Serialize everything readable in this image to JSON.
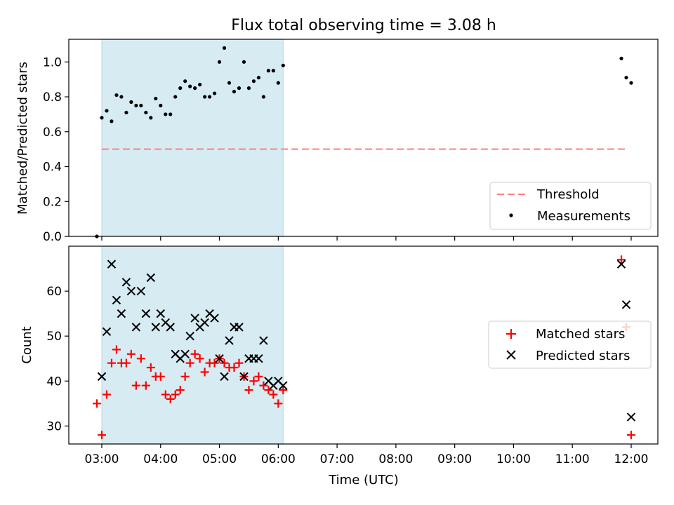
{
  "figure": {
    "title": "Flux total observing time = 3.08 h"
  },
  "chart_data": [
    {
      "type": "scatter",
      "panel": "top",
      "ylabel": "Matched/Predicted stars",
      "xlabel": "",
      "ylim": [
        0.0,
        1.13
      ],
      "yticks": [
        0.0,
        0.2,
        0.4,
        0.6,
        0.8,
        1.0
      ],
      "ytick_labels": [
        "0.0",
        "0.2",
        "0.4",
        "0.6",
        "0.8",
        "1.0"
      ],
      "shaded_interval": [
        "03:00",
        "06:05"
      ],
      "series": [
        {
          "name": "Threshold",
          "kind": "dashed-line",
          "color": "#ff7f7f",
          "points": [
            [
              "03:00",
              0.5
            ],
            [
              "11:56",
              0.5
            ]
          ]
        },
        {
          "name": "Measurements",
          "kind": "dot",
          "color": "#000000",
          "points": [
            [
              "02:55",
              0.0
            ],
            [
              "03:00",
              0.68
            ],
            [
              "03:05",
              0.72
            ],
            [
              "03:10",
              0.66
            ],
            [
              "03:15",
              0.81
            ],
            [
              "03:20",
              0.8
            ],
            [
              "03:25",
              0.71
            ],
            [
              "03:30",
              0.77
            ],
            [
              "03:35",
              0.75
            ],
            [
              "03:40",
              0.75
            ],
            [
              "03:45",
              0.71
            ],
            [
              "03:50",
              0.68
            ],
            [
              "03:55",
              0.79
            ],
            [
              "04:00",
              0.75
            ],
            [
              "04:05",
              0.7
            ],
            [
              "04:10",
              0.7
            ],
            [
              "04:15",
              0.8
            ],
            [
              "04:20",
              0.85
            ],
            [
              "04:25",
              0.89
            ],
            [
              "04:30",
              0.86
            ],
            [
              "04:35",
              0.85
            ],
            [
              "04:40",
              0.87
            ],
            [
              "04:45",
              0.8
            ],
            [
              "04:50",
              0.8
            ],
            [
              "04:55",
              0.82
            ],
            [
              "05:00",
              1.0
            ],
            [
              "05:05",
              1.08
            ],
            [
              "05:10",
              0.88
            ],
            [
              "05:15",
              0.83
            ],
            [
              "05:20",
              0.85
            ],
            [
              "05:25",
              1.0
            ],
            [
              "05:30",
              0.85
            ],
            [
              "05:35",
              0.89
            ],
            [
              "05:40",
              0.91
            ],
            [
              "05:45",
              0.8
            ],
            [
              "05:50",
              0.95
            ],
            [
              "05:55",
              0.95
            ],
            [
              "06:00",
              0.88
            ],
            [
              "06:05",
              0.98
            ],
            [
              "11:50",
              1.02
            ],
            [
              "11:55",
              0.91
            ],
            [
              "12:00",
              0.88
            ]
          ]
        }
      ],
      "legend": {
        "position": "lower-right",
        "entries": [
          "Threshold",
          "Measurements"
        ]
      }
    },
    {
      "type": "scatter",
      "panel": "bottom",
      "ylabel": "Count",
      "xlabel": "Time (UTC)",
      "ylim": [
        26,
        70
      ],
      "yticks": [
        30,
        40,
        50,
        60
      ],
      "ytick_labels": [
        "30",
        "40",
        "50",
        "60"
      ],
      "xlim": [
        "02:27",
        "12:27"
      ],
      "xticks": [
        "03:00",
        "04:00",
        "05:00",
        "06:00",
        "07:00",
        "08:00",
        "09:00",
        "10:00",
        "11:00",
        "12:00"
      ],
      "xtick_labels": [
        "03:00",
        "04:00",
        "05:00",
        "06:00",
        "07:00",
        "08:00",
        "09:00",
        "10:00",
        "11:00",
        "12:00"
      ],
      "shaded_interval": [
        "03:00",
        "06:05"
      ],
      "series": [
        {
          "name": "Matched stars",
          "kind": "plus",
          "color": "#ff0000",
          "points": [
            [
              "02:55",
              35
            ],
            [
              "03:00",
              28
            ],
            [
              "03:05",
              37
            ],
            [
              "03:10",
              44
            ],
            [
              "03:15",
              47
            ],
            [
              "03:20",
              44
            ],
            [
              "03:25",
              44
            ],
            [
              "03:30",
              46
            ],
            [
              "03:35",
              39
            ],
            [
              "03:40",
              45
            ],
            [
              "03:45",
              39
            ],
            [
              "03:50",
              43
            ],
            [
              "03:55",
              41
            ],
            [
              "04:00",
              41
            ],
            [
              "04:05",
              37
            ],
            [
              "04:10",
              36
            ],
            [
              "04:15",
              37
            ],
            [
              "04:20",
              38
            ],
            [
              "04:25",
              41
            ],
            [
              "04:30",
              44
            ],
            [
              "04:35",
              46
            ],
            [
              "04:40",
              45
            ],
            [
              "04:45",
              42
            ],
            [
              "04:50",
              44
            ],
            [
              "04:55",
              44
            ],
            [
              "05:00",
              45
            ],
            [
              "05:05",
              44
            ],
            [
              "05:10",
              43
            ],
            [
              "05:15",
              43
            ],
            [
              "05:20",
              44
            ],
            [
              "05:25",
              41
            ],
            [
              "05:30",
              38
            ],
            [
              "05:35",
              40
            ],
            [
              "05:40",
              41
            ],
            [
              "05:45",
              39
            ],
            [
              "05:50",
              38
            ],
            [
              "05:55",
              37
            ],
            [
              "06:00",
              35
            ],
            [
              "06:05",
              38
            ],
            [
              "11:50",
              67
            ],
            [
              "11:55",
              52
            ],
            [
              "12:00",
              28
            ]
          ]
        },
        {
          "name": "Predicted stars",
          "kind": "x",
          "color": "#000000",
          "points": [
            [
              "03:00",
              41
            ],
            [
              "03:05",
              51
            ],
            [
              "03:10",
              66
            ],
            [
              "03:15",
              58
            ],
            [
              "03:20",
              55
            ],
            [
              "03:25",
              62
            ],
            [
              "03:30",
              60
            ],
            [
              "03:35",
              52
            ],
            [
              "03:40",
              60
            ],
            [
              "03:45",
              55
            ],
            [
              "03:50",
              63
            ],
            [
              "03:55",
              52
            ],
            [
              "04:00",
              55
            ],
            [
              "04:05",
              53
            ],
            [
              "04:10",
              52
            ],
            [
              "04:15",
              46
            ],
            [
              "04:20",
              45
            ],
            [
              "04:25",
              46
            ],
            [
              "04:30",
              50
            ],
            [
              "04:35",
              54
            ],
            [
              "04:40",
              52
            ],
            [
              "04:45",
              53
            ],
            [
              "04:50",
              55
            ],
            [
              "04:55",
              54
            ],
            [
              "05:00",
              45
            ],
            [
              "05:05",
              41
            ],
            [
              "05:10",
              49
            ],
            [
              "05:15",
              52
            ],
            [
              "05:20",
              52
            ],
            [
              "05:25",
              41
            ],
            [
              "05:30",
              45
            ],
            [
              "05:35",
              45
            ],
            [
              "05:40",
              45
            ],
            [
              "05:45",
              49
            ],
            [
              "05:50",
              40
            ],
            [
              "05:55",
              39
            ],
            [
              "06:00",
              40
            ],
            [
              "06:05",
              39
            ],
            [
              "11:50",
              66
            ],
            [
              "11:55",
              57
            ],
            [
              "12:00",
              32
            ]
          ]
        }
      ],
      "legend": {
        "position": "center-right",
        "entries": [
          "Matched stars",
          "Predicted stars"
        ]
      }
    }
  ],
  "colors": {
    "shade": "#add8e6",
    "threshold": "#ff7f7f",
    "matched": "#ff0000",
    "predicted": "#000000",
    "measurement": "#000000",
    "axes": "#000000"
  }
}
